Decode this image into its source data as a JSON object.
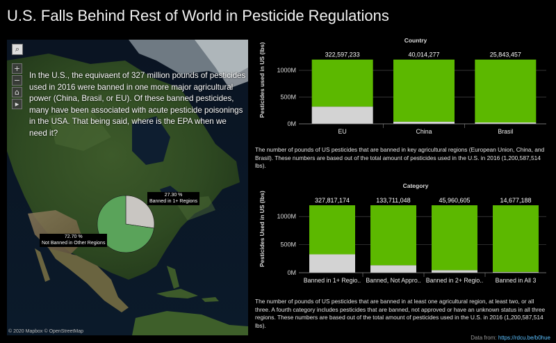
{
  "title": "U.S. Falls Behind Rest of World in Pesticide Regulations",
  "map": {
    "text": "In the U.S., the equivaent of 327 million pounds of pesticides  used in 2016 were banned in one more major agricultural power (China, Brasil, or EU). Of these banned pesticides, many have been associated with acute pesticide poisonings in the USA. That being said, where is the EPA when we need it?",
    "copyright": "© 2020 Mapbox  © OpenStreetMap",
    "controls": {
      "search": "⌕",
      "zoom_in": "+",
      "zoom_out": "−",
      "home": "⌂",
      "arrow": "▸"
    },
    "pie": {
      "slices": [
        {
          "label": "Banned in 1+ Regions",
          "percent_label": "27.30 %",
          "value": 27.3,
          "color": "#c9c6c2"
        },
        {
          "label": "Not Banned in Other Regions",
          "percent_label": "72.70 %",
          "value": 72.7,
          "color": "#5aa35a"
        }
      ]
    }
  },
  "chart_data": [
    {
      "type": "bar",
      "title": "Country",
      "ylabel": "Pesticides used in US (lbs)",
      "categories": [
        "EU",
        "China",
        "Brasil"
      ],
      "value_labels": [
        "322,597,233",
        "40,014,277",
        "25,843,457"
      ],
      "series": [
        {
          "values": [
            322597233,
            40014277,
            25843457
          ],
          "color": "#d3d3d3"
        },
        {
          "values": [
            877990281,
            1160573237,
            1174744057
          ],
          "color": "#5cb800"
        }
      ],
      "totals": [
        1200587514,
        1200587514,
        1200587514
      ],
      "yticks": [
        "0M",
        "500M",
        "1000M"
      ],
      "ylim": [
        0,
        1300000000
      ]
    },
    {
      "type": "bar",
      "title": "Category",
      "ylabel": "Pesticides Used in US (lbs)",
      "categories": [
        "Banned in 1+ Regio..",
        "Banned, Not Appro..",
        "Banned in 2+ Regio..",
        "Banned in All 3"
      ],
      "value_labels": [
        "327,817,174",
        "133,711,048",
        "45,960,605",
        "14,677,188"
      ],
      "series": [
        {
          "values": [
            327817174,
            133711048,
            45960605,
            14677188
          ],
          "color": "#d3d3d3"
        },
        {
          "values": [
            872770340,
            1066876466,
            1154626909,
            1185910326
          ],
          "color": "#5cb800"
        }
      ],
      "totals": [
        1200587514,
        1200587514,
        1200587514,
        1200587514
      ],
      "yticks": [
        "0M",
        "500M",
        "1000M"
      ],
      "ylim": [
        0,
        1300000000
      ]
    }
  ],
  "captions": {
    "country": "The number of pounds of US pesticides that are banned in key agricultural regions (European Union, China, and Brasil). These numbers are based out of the total amount of pesticides used in the U.S. in 2016 (1,200,587,514 lbs).",
    "category": "The number of pounds of US pesticides that are banned in at least one agricultural region, at least two, or all three. A fourth category includes pesticides that are banned, not approved or have an unknown status in all three regions. These numbers are based out of the total amount of pesticides used in the U.S. in 2016 (1,200,587,514 lbs)."
  },
  "source": {
    "prefix": "Data from:",
    "link": "https://rdcu.be/b0hue"
  }
}
